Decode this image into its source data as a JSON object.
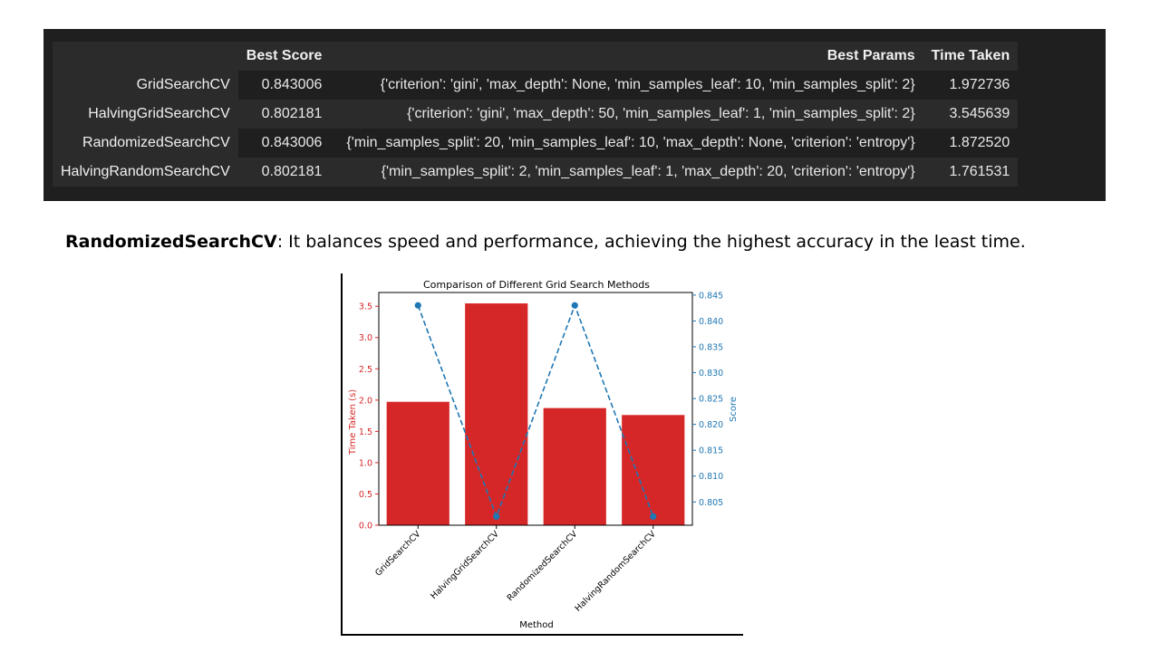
{
  "dataframe": {
    "columns": [
      "",
      "Best Score",
      "Best Params",
      "Time Taken"
    ],
    "rows": [
      {
        "method": "GridSearchCV",
        "score": "0.843006",
        "params": "{'criterion': 'gini', 'max_depth': None, 'min_samples_leaf': 10, 'min_samples_split': 2}",
        "time": "1.972736"
      },
      {
        "method": "HalvingGridSearchCV",
        "score": "0.802181",
        "params": "{'criterion': 'gini', 'max_depth': 50, 'min_samples_leaf': 1, 'min_samples_split': 2}",
        "time": "3.545639"
      },
      {
        "method": "RandomizedSearchCV",
        "score": "0.843006",
        "params": "{'min_samples_split': 20, 'min_samples_leaf': 10, 'max_depth': None, 'criterion': 'entropy'}",
        "time": "1.872520"
      },
      {
        "method": "HalvingRandomSearchCV",
        "score": "0.802181",
        "params": "{'min_samples_split': 2, 'min_samples_leaf': 1, 'max_depth': 20, 'criterion': 'entropy'}",
        "time": "1.761531"
      }
    ]
  },
  "note": {
    "bold": "RandomizedSearchCV",
    "text": ": It balances speed and performance, achieving the highest accuracy in the least time."
  },
  "colors": {
    "bar": "#d62728",
    "line": "#1f77b4",
    "panel": "#1f1f1f"
  },
  "chart_data": {
    "type": "bar",
    "title": "Comparison of Different Grid Search Methods",
    "xlabel": "Method",
    "ylabel": "Time Taken (s)",
    "y2label": "Score",
    "categories": [
      "GridSearchCV",
      "HalvingGridSearchCV",
      "RandomizedSearchCV",
      "HalvingRandomSearchCV"
    ],
    "ylim": [
      0,
      3.72
    ],
    "y2lim": [
      0.8005,
      0.8455
    ],
    "yticks": [
      0.0,
      0.5,
      1.0,
      1.5,
      2.0,
      2.5,
      3.0,
      3.5
    ],
    "y2ticks": [
      0.805,
      0.81,
      0.815,
      0.82,
      0.825,
      0.83,
      0.835,
      0.84,
      0.845
    ],
    "series": [
      {
        "name": "Time Taken (s)",
        "type": "bar",
        "axis": "left",
        "values": [
          1.972736,
          3.545639,
          1.87252,
          1.761531
        ]
      },
      {
        "name": "Score",
        "type": "line",
        "style": "dashed",
        "marker": "o",
        "axis": "right",
        "values": [
          0.843006,
          0.802181,
          0.843006,
          0.802181
        ]
      }
    ]
  }
}
